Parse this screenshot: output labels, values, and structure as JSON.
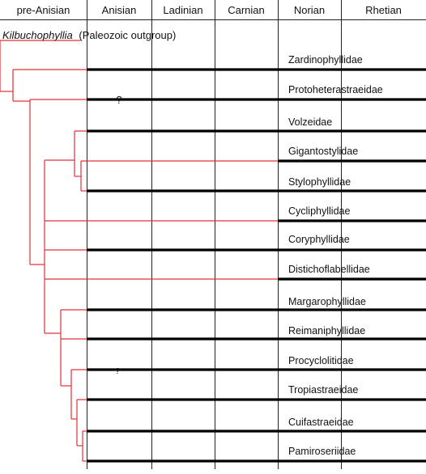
{
  "stages": [
    "pre-Anisian",
    "Anisian",
    "Ladinian",
    "Carnian",
    "Norian",
    "Rhetian"
  ],
  "outgroup": {
    "name": "Kilbuchophyllia",
    "note": "(Paleozoic outgroup)"
  },
  "families": [
    {
      "name": "Zardinophyllidae",
      "range_start": "Anisian",
      "question": ""
    },
    {
      "name": "Protoheterastraeidae",
      "range_start": "Anisian",
      "question": "?"
    },
    {
      "name": "Volzeidae",
      "range_start": "Anisian",
      "question": ""
    },
    {
      "name": "Gigantostylidae",
      "range_start": "Norian",
      "question": ""
    },
    {
      "name": "Stylophyllidae",
      "range_start": "Anisian",
      "question": ""
    },
    {
      "name": "Cycliphyllidae",
      "range_start": "Norian",
      "question": ""
    },
    {
      "name": "Coryphyllidae",
      "range_start": "Anisian",
      "question": ""
    },
    {
      "name": "Distichoflabellidae",
      "range_start": "Norian",
      "question": ""
    },
    {
      "name": "Margarophyllidae",
      "range_start": "Anisian",
      "question": ""
    },
    {
      "name": "Reimaniphyllidae",
      "range_start": "Anisian",
      "question": ""
    },
    {
      "name": "Procyclolitidae",
      "range_start": "Anisian",
      "question": "?"
    },
    {
      "name": "Tropiastraeidae",
      "range_start": "Anisian",
      "question": ""
    },
    {
      "name": "Cuifastraeidae",
      "range_start": "Anisian",
      "question": ""
    },
    {
      "name": "Pamiroseriidae",
      "range_start": "Anisian",
      "question": ""
    }
  ],
  "colors": {
    "tree": "#e0303a",
    "range": "#000000",
    "grid": "#222222"
  }
}
